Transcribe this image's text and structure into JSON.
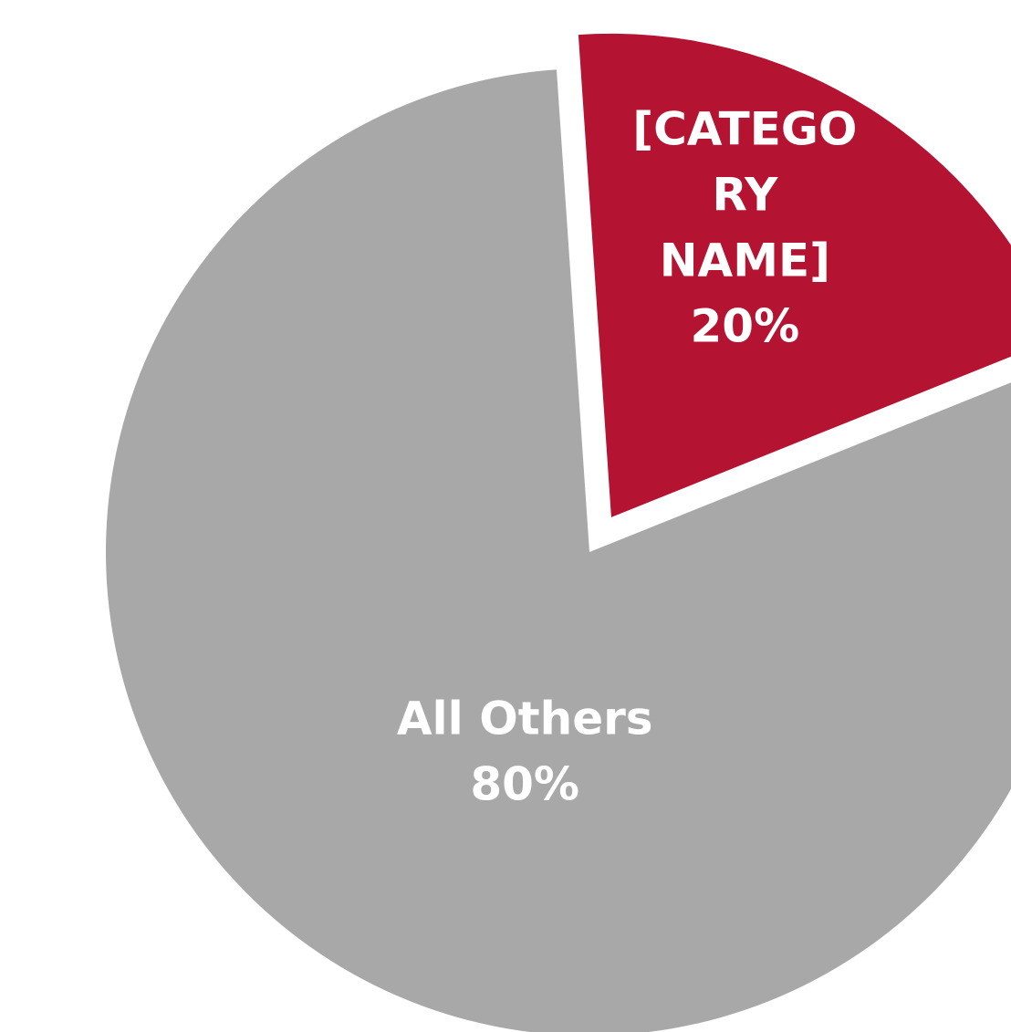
{
  "chart_data": {
    "type": "pie",
    "slices": [
      {
        "label_lines": [
          "[CATEGO",
          "RY",
          "NAME]"
        ],
        "value": 20,
        "value_label": "20%",
        "color": "#b41332",
        "exploded": true
      },
      {
        "label_lines": [
          "All Others"
        ],
        "value": 80,
        "value_label": "80%",
        "color": "#a8a8a8",
        "exploded": false
      }
    ],
    "title": "",
    "legend": "none",
    "start_angle_deg": -3.9,
    "direction": "clockwise"
  }
}
